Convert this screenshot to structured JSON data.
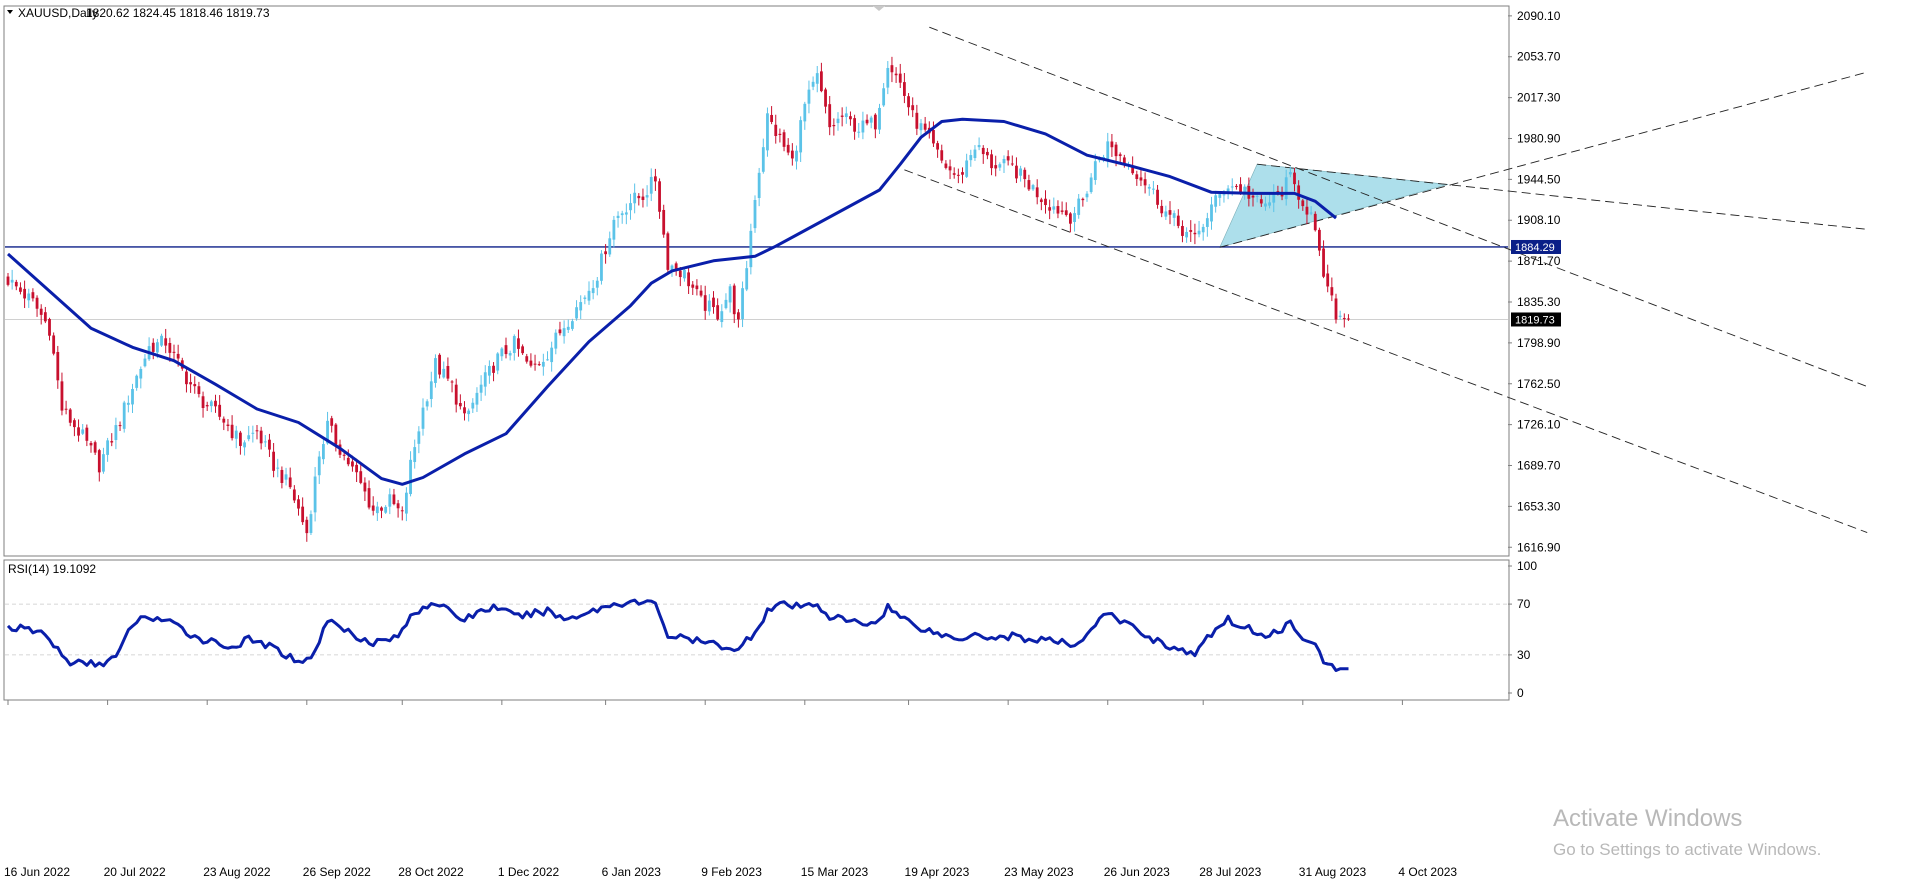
{
  "header": {
    "symbol": "XAUUSD,Daily",
    "ohlc": "1820.62 1824.45 1818.46 1819.73",
    "dropdown_icon": "triangle-down-icon"
  },
  "rsi_header": {
    "label": "RSI(14) 19.1092"
  },
  "watermark": {
    "title": "Activate Windows",
    "subtitle": "Go to Settings to activate Windows."
  },
  "chart_data": [
    {
      "type": "candlestick",
      "price_axis": {
        "ticks": [
          "2090.10",
          "2053.70",
          "2017.30",
          "1980.90",
          "1944.50",
          "1908.10",
          "1871.70",
          "1835.30",
          "1798.90",
          "1762.50",
          "1726.10",
          "1689.70",
          "1653.30",
          "1616.90"
        ],
        "range": [
          1610,
          2098
        ]
      },
      "time_axis": {
        "ticks": [
          "16 Jun 2022",
          "20 Jul 2022",
          "23 Aug 2022",
          "26 Sep 2022",
          "28 Oct 2022",
          "1 Dec 2022",
          "6 Jan 2023",
          "9 Feb 2023",
          "15 Mar 2023",
          "19 Apr 2023",
          "23 May 2023",
          "26 Jun 2023",
          "28 Jul 2023",
          "31 Aug 2023",
          "4 Oct 2023"
        ],
        "tick_bar_index": [
          0,
          24,
          48,
          72,
          95,
          119,
          144,
          168,
          192,
          217,
          241,
          265,
          288,
          312,
          336
        ]
      },
      "up_color": "#5bc3e8",
      "down_color": "#c8102e",
      "close_path": [
        [
          0,
          1855
        ],
        [
          6,
          1835
        ],
        [
          10,
          1812
        ],
        [
          13,
          1740
        ],
        [
          18,
          1715
        ],
        [
          22,
          1690
        ],
        [
          27,
          1730
        ],
        [
          30,
          1760
        ],
        [
          34,
          1795
        ],
        [
          38,
          1800
        ],
        [
          41,
          1780
        ],
        [
          46,
          1750
        ],
        [
          52,
          1730
        ],
        [
          56,
          1710
        ],
        [
          60,
          1720
        ],
        [
          64,
          1690
        ],
        [
          68,
          1670
        ],
        [
          72,
          1630
        ],
        [
          75,
          1700
        ],
        [
          77,
          1725
        ],
        [
          80,
          1705
        ],
        [
          84,
          1680
        ],
        [
          88,
          1650
        ],
        [
          92,
          1658
        ],
        [
          95,
          1645
        ],
        [
          97,
          1690
        ],
        [
          100,
          1740
        ],
        [
          103,
          1780
        ],
        [
          107,
          1760
        ],
        [
          110,
          1730
        ],
        [
          114,
          1760
        ],
        [
          118,
          1785
        ],
        [
          122,
          1798
        ],
        [
          126,
          1775
        ],
        [
          130,
          1790
        ],
        [
          134,
          1815
        ],
        [
          138,
          1835
        ],
        [
          142,
          1860
        ],
        [
          146,
          1908
        ],
        [
          150,
          1925
        ],
        [
          153,
          1930
        ],
        [
          156,
          1945
        ],
        [
          159,
          1870
        ],
        [
          163,
          1860
        ],
        [
          167,
          1835
        ],
        [
          171,
          1825
        ],
        [
          174,
          1845
        ],
        [
          176,
          1815
        ],
        [
          178,
          1868
        ],
        [
          180,
          1930
        ],
        [
          183,
          2000
        ],
        [
          186,
          1980
        ],
        [
          189,
          1960
        ],
        [
          192,
          2010
        ],
        [
          195,
          2035
        ],
        [
          198,
          1990
        ],
        [
          201,
          2000
        ],
        [
          205,
          1990
        ],
        [
          209,
          1995
        ],
        [
          212,
          2050
        ],
        [
          215,
          2030
        ],
        [
          218,
          2000
        ],
        [
          221,
          1985
        ],
        [
          225,
          1960
        ],
        [
          229,
          1945
        ],
        [
          233,
          1975
        ],
        [
          237,
          1958
        ],
        [
          242,
          1955
        ],
        [
          246,
          1940
        ],
        [
          250,
          1925
        ],
        [
          253,
          1918
        ],
        [
          256,
          1912
        ],
        [
          259,
          1925
        ],
        [
          262,
          1958
        ],
        [
          265,
          1975
        ],
        [
          268,
          1965
        ],
        [
          271,
          1955
        ],
        [
          275,
          1938
        ],
        [
          279,
          1915
        ],
        [
          283,
          1900
        ],
        [
          286,
          1890
        ],
        [
          290,
          1920
        ],
        [
          294,
          1940
        ],
        [
          298,
          1935
        ],
        [
          302,
          1920
        ],
        [
          306,
          1930
        ],
        [
          309,
          1945
        ],
        [
          312,
          1925
        ],
        [
          314,
          1912
        ],
        [
          316,
          1875
        ],
        [
          318,
          1845
        ],
        [
          320,
          1825
        ],
        [
          323,
          1819
        ]
      ],
      "series": [
        {
          "name": "Moving average",
          "color": "#0a1faa",
          "points": [
            [
              0,
              1878
            ],
            [
              10,
              1845
            ],
            [
              20,
              1812
            ],
            [
              30,
              1795
            ],
            [
              40,
              1783
            ],
            [
              50,
              1762
            ],
            [
              60,
              1740
            ],
            [
              70,
              1728
            ],
            [
              80,
              1705
            ],
            [
              90,
              1678
            ],
            [
              95,
              1673
            ],
            [
              100,
              1679
            ],
            [
              110,
              1700
            ],
            [
              120,
              1718
            ],
            [
              130,
              1760
            ],
            [
              140,
              1800
            ],
            [
              150,
              1832
            ],
            [
              155,
              1852
            ],
            [
              160,
              1863
            ],
            [
              170,
              1872
            ],
            [
              180,
              1876
            ],
            [
              185,
              1885
            ],
            [
              190,
              1895
            ],
            [
              200,
              1915
            ],
            [
              210,
              1935
            ],
            [
              215,
              1958
            ],
            [
              220,
              1982
            ],
            [
              225,
              1996
            ],
            [
              230,
              1998
            ],
            [
              240,
              1996
            ],
            [
              250,
              1985
            ],
            [
              260,
              1966
            ],
            [
              270,
              1957
            ],
            [
              280,
              1947
            ],
            [
              290,
              1933
            ],
            [
              300,
              1932
            ],
            [
              305,
              1932
            ],
            [
              310,
              1932
            ],
            [
              315,
              1925
            ],
            [
              320,
              1910
            ]
          ]
        }
      ],
      "horizontal_lines": [
        {
          "value": 1884.29,
          "label": "1884.29",
          "color": "#0a1f88"
        },
        {
          "value": 1819.73,
          "label": "1819.73",
          "color": "#c0c0c0"
        }
      ],
      "trendlines": [
        {
          "style": "dashed",
          "from": [
            222,
            2080
          ],
          "to": [
            448,
            1760
          ]
        },
        {
          "style": "dashed",
          "from": [
            216,
            1953
          ],
          "to": [
            448,
            1630
          ]
        },
        {
          "style": "dashed",
          "from": [
            301,
            1958
          ],
          "to": [
            448,
            1900
          ]
        },
        {
          "style": "dashed",
          "from": [
            292,
            1884
          ],
          "to": [
            448,
            2040
          ]
        }
      ],
      "triangle": {
        "color": "#9fd9e8",
        "points": [
          [
            301,
            1958
          ],
          [
            347,
            1940
          ],
          [
            292,
            1884
          ]
        ]
      }
    },
    {
      "type": "line",
      "name": "RSI(14)",
      "value": 19.1092,
      "y_axis": {
        "ticks": [
          "100",
          "70",
          "30",
          "0"
        ],
        "range": [
          0,
          100
        ]
      },
      "guide_levels": [
        70,
        30
      ],
      "color": "#0a1faa",
      "points": [
        [
          0,
          52
        ],
        [
          4,
          50
        ],
        [
          8,
          48
        ],
        [
          12,
          35
        ],
        [
          14,
          25
        ],
        [
          18,
          23
        ],
        [
          22,
          23
        ],
        [
          26,
          28
        ],
        [
          28,
          40
        ],
        [
          30,
          55
        ],
        [
          34,
          60
        ],
        [
          38,
          57
        ],
        [
          42,
          50
        ],
        [
          46,
          43
        ],
        [
          50,
          40
        ],
        [
          54,
          36
        ],
        [
          58,
          42
        ],
        [
          62,
          38
        ],
        [
          66,
          32
        ],
        [
          68,
          28
        ],
        [
          72,
          25
        ],
        [
          75,
          40
        ],
        [
          77,
          58
        ],
        [
          80,
          52
        ],
        [
          84,
          45
        ],
        [
          88,
          40
        ],
        [
          92,
          42
        ],
        [
          95,
          48
        ],
        [
          97,
          60
        ],
        [
          100,
          68
        ],
        [
          103,
          72
        ],
        [
          107,
          62
        ],
        [
          110,
          58
        ],
        [
          114,
          65
        ],
        [
          118,
          68
        ],
        [
          122,
          60
        ],
        [
          126,
          62
        ],
        [
          130,
          65
        ],
        [
          134,
          58
        ],
        [
          138,
          62
        ],
        [
          142,
          66
        ],
        [
          146,
          70
        ],
        [
          150,
          72
        ],
        [
          153,
          70
        ],
        [
          156,
          72
        ],
        [
          159,
          45
        ],
        [
          163,
          43
        ],
        [
          167,
          40
        ],
        [
          171,
          38
        ],
        [
          174,
          36
        ],
        [
          176,
          33
        ],
        [
          178,
          42
        ],
        [
          180,
          48
        ],
        [
          183,
          65
        ],
        [
          186,
          70
        ],
        [
          189,
          68
        ],
        [
          192,
          68
        ],
        [
          195,
          70
        ],
        [
          198,
          60
        ],
        [
          201,
          58
        ],
        [
          205,
          55
        ],
        [
          209,
          55
        ],
        [
          212,
          68
        ],
        [
          215,
          60
        ],
        [
          218,
          55
        ],
        [
          221,
          50
        ],
        [
          225,
          46
        ],
        [
          229,
          42
        ],
        [
          233,
          48
        ],
        [
          237,
          43
        ],
        [
          242,
          45
        ],
        [
          246,
          42
        ],
        [
          250,
          42
        ],
        [
          253,
          40
        ],
        [
          256,
          38
        ],
        [
          259,
          42
        ],
        [
          262,
          55
        ],
        [
          265,
          62
        ],
        [
          268,
          57
        ],
        [
          271,
          52
        ],
        [
          275,
          44
        ],
        [
          279,
          38
        ],
        [
          283,
          33
        ],
        [
          286,
          30
        ],
        [
          290,
          47
        ],
        [
          294,
          58
        ],
        [
          298,
          52
        ],
        [
          302,
          46
        ],
        [
          306,
          48
        ],
        [
          309,
          55
        ],
        [
          312,
          45
        ],
        [
          314,
          42
        ],
        [
          316,
          30
        ],
        [
          318,
          22
        ],
        [
          320,
          19
        ],
        [
          323,
          19
        ]
      ]
    }
  ]
}
